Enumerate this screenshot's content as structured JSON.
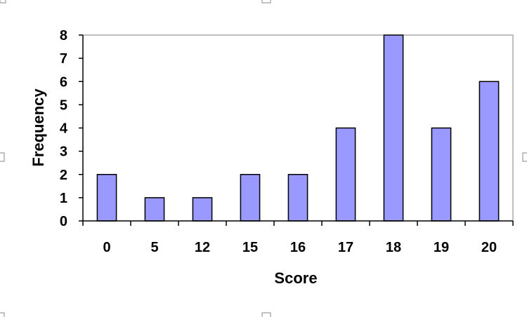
{
  "chart_data": {
    "type": "bar",
    "title": "",
    "xlabel": "Score",
    "ylabel": "Frequency",
    "categories": [
      "0",
      "5",
      "12",
      "15",
      "16",
      "17",
      "18",
      "19",
      "20"
    ],
    "values": [
      2,
      1,
      1,
      2,
      2,
      4,
      8,
      4,
      6
    ],
    "ylim": [
      0,
      8
    ],
    "yticks": [
      "0",
      "1",
      "2",
      "3",
      "4",
      "5",
      "6",
      "7",
      "8"
    ],
    "grid": false,
    "legend": "none",
    "colors": {
      "bar_fill": "#9999ff",
      "bar_stroke": "#000000",
      "plot_border": "#808080",
      "axis": "#000000"
    }
  }
}
